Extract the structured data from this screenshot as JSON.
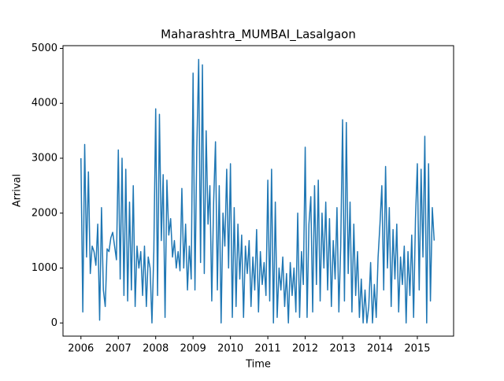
{
  "chart_data": {
    "type": "line",
    "title": "Maharashtra_MUMBAI_Lasalgaon",
    "xlabel": "Time",
    "ylabel": "Arrival",
    "xlim": [
      2005.52,
      2015.97
    ],
    "ylim": [
      -240,
      5050
    ],
    "xticks": [
      2006,
      2007,
      2008,
      2009,
      2010,
      2011,
      2012,
      2013,
      2014,
      2015
    ],
    "yticks": [
      0,
      1000,
      2000,
      3000,
      4000,
      5000
    ],
    "grid": false,
    "series": [
      {
        "name": "Arrival",
        "color": "#1f77b4",
        "x": [
          2006.0,
          2006.05,
          2006.1,
          2006.15,
          2006.2,
          2006.25,
          2006.3,
          2006.35,
          2006.4,
          2006.45,
          2006.5,
          2006.55,
          2006.6,
          2006.65,
          2006.7,
          2006.75,
          2006.8,
          2006.85,
          2006.9,
          2006.95,
          2007.0,
          2007.05,
          2007.1,
          2007.15,
          2007.2,
          2007.25,
          2007.3,
          2007.35,
          2007.4,
          2007.45,
          2007.5,
          2007.55,
          2007.6,
          2007.65,
          2007.7,
          2007.75,
          2007.8,
          2007.85,
          2007.9,
          2007.95,
          2008.0,
          2008.05,
          2008.1,
          2008.15,
          2008.2,
          2008.25,
          2008.3,
          2008.35,
          2008.4,
          2008.45,
          2008.5,
          2008.55,
          2008.6,
          2008.65,
          2008.7,
          2008.75,
          2008.8,
          2008.85,
          2008.9,
          2008.95,
          2009.0,
          2009.05,
          2009.1,
          2009.15,
          2009.2,
          2009.25,
          2009.3,
          2009.35,
          2009.4,
          2009.45,
          2009.5,
          2009.55,
          2009.6,
          2009.65,
          2009.7,
          2009.75,
          2009.8,
          2009.85,
          2009.9,
          2009.95,
          2010.0,
          2010.05,
          2010.1,
          2010.15,
          2010.2,
          2010.25,
          2010.3,
          2010.35,
          2010.4,
          2010.45,
          2010.5,
          2010.55,
          2010.6,
          2010.65,
          2010.7,
          2010.75,
          2010.8,
          2010.85,
          2010.9,
          2010.95,
          2011.0,
          2011.05,
          2011.1,
          2011.15,
          2011.2,
          2011.25,
          2011.3,
          2011.35,
          2011.4,
          2011.45,
          2011.5,
          2011.55,
          2011.6,
          2011.65,
          2011.7,
          2011.75,
          2011.8,
          2011.85,
          2011.9,
          2011.95,
          2012.0,
          2012.05,
          2012.1,
          2012.15,
          2012.2,
          2012.25,
          2012.3,
          2012.35,
          2012.4,
          2012.45,
          2012.5,
          2012.55,
          2012.6,
          2012.65,
          2012.7,
          2012.75,
          2012.8,
          2012.85,
          2012.9,
          2012.95,
          2013.0,
          2013.05,
          2013.1,
          2013.15,
          2013.2,
          2013.25,
          2013.3,
          2013.35,
          2013.4,
          2013.45,
          2013.5,
          2013.55,
          2013.6,
          2013.65,
          2013.7,
          2013.75,
          2013.8,
          2013.85,
          2013.9,
          2013.95,
          2014.0,
          2014.05,
          2014.1,
          2014.15,
          2014.2,
          2014.25,
          2014.3,
          2014.35,
          2014.4,
          2014.45,
          2014.5,
          2014.55,
          2014.6,
          2014.65,
          2014.7,
          2014.75,
          2014.8,
          2014.85,
          2014.9,
          2014.95,
          2015.0,
          2015.05,
          2015.1,
          2015.15,
          2015.2,
          2015.25,
          2015.3,
          2015.35,
          2015.4,
          2015.45
        ],
        "values": [
          3000,
          200,
          3250,
          1200,
          2750,
          900,
          1400,
          1300,
          1050,
          1800,
          50,
          2100,
          600,
          300,
          1350,
          1300,
          1550,
          1650,
          1400,
          1150,
          3150,
          800,
          3000,
          500,
          2800,
          400,
          2200,
          600,
          2500,
          300,
          1400,
          1000,
          1300,
          500,
          1400,
          300,
          1200,
          1000,
          0,
          1300,
          3900,
          500,
          3800,
          1500,
          2700,
          100,
          2600,
          1600,
          1900,
          1200,
          1500,
          1000,
          1300,
          950,
          2450,
          1000,
          1800,
          600,
          1400,
          800,
          4550,
          600,
          3200,
          4800,
          1100,
          4700,
          900,
          3500,
          1800,
          2500,
          400,
          2200,
          3300,
          600,
          2500,
          0,
          2000,
          1400,
          2800,
          1000,
          2900,
          100,
          2100,
          300,
          1800,
          800,
          1600,
          100,
          1400,
          900,
          1500,
          300,
          1200,
          600,
          1700,
          200,
          1300,
          700,
          1100,
          500,
          2600,
          400,
          2800,
          0,
          2200,
          100,
          1000,
          600,
          1200,
          300,
          900,
          0,
          1100,
          500,
          1000,
          200,
          2000,
          100,
          1300,
          700,
          3200,
          100,
          1800,
          2300,
          200,
          2500,
          700,
          2600,
          400,
          2000,
          1000,
          2200,
          600,
          1900,
          300,
          1500,
          800,
          2100,
          200,
          1400,
          3700,
          400,
          3650,
          900,
          2200,
          200,
          1800,
          500,
          1300,
          100,
          800,
          0,
          600,
          0,
          300,
          1100,
          0,
          700,
          100,
          1200,
          1800,
          2500,
          600,
          2850,
          1000,
          2100,
          300,
          1700,
          800,
          1800,
          200,
          1200,
          700,
          1400,
          0,
          1300,
          500,
          1600,
          100,
          1900,
          2900,
          600,
          2800,
          1200,
          3400,
          0,
          2900,
          400,
          2100,
          1500
        ]
      }
    ]
  }
}
